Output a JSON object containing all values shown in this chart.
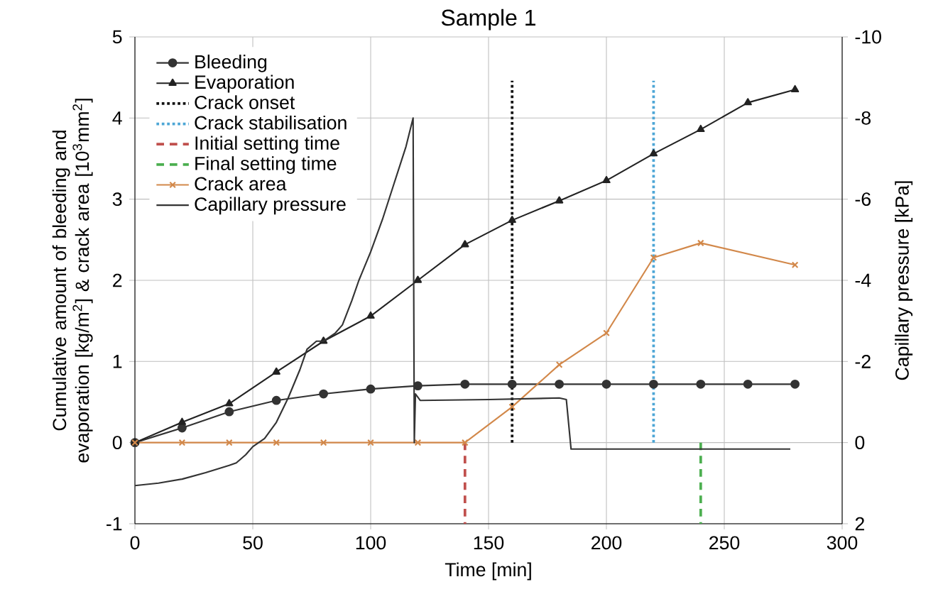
{
  "chart_data": {
    "type": "line",
    "title": "Sample 1",
    "xlabel": "Time [min]",
    "ylabel": "Cumulative amount of bleeding and evaporation [kg/m$^{2}$] & crack area [10$^{3}$mm$^{2}$]",
    "y2label": "Capillary pressure [kPa]",
    "xlim": [
      0,
      300
    ],
    "xticks": [
      0,
      50,
      100,
      150,
      200,
      250,
      300
    ],
    "ylim": [
      -1,
      5
    ],
    "yticks": [
      -1,
      0,
      1,
      2,
      3,
      4,
      5
    ],
    "y2lim": [
      2,
      -10
    ],
    "y2ticks": [
      2,
      0,
      -2,
      -4,
      -6,
      -8,
      -10
    ],
    "grid": true,
    "legend": "top left",
    "series": [
      {
        "name": "Bleeding",
        "color": "#333333",
        "marker": "circle",
        "x": [
          0,
          20,
          40,
          60,
          80,
          100,
          120,
          140,
          160,
          180,
          200,
          220,
          240,
          260,
          280
        ],
        "values": [
          0,
          0.18,
          0.38,
          0.52,
          0.6,
          0.66,
          0.7,
          0.72,
          0.72,
          0.72,
          0.72,
          0.72,
          0.72,
          0.72,
          0.72
        ]
      },
      {
        "name": "Evaporation",
        "color": "#222222",
        "marker": "triangle",
        "x": [
          0,
          20,
          40,
          60,
          80,
          100,
          120,
          140,
          160,
          180,
          200,
          220,
          240,
          260,
          280
        ],
        "values": [
          0,
          0.25,
          0.48,
          0.87,
          1.25,
          1.56,
          2.0,
          2.44,
          2.74,
          2.98,
          3.23,
          3.56,
          3.86,
          4.19,
          4.35
        ]
      },
      {
        "name": "Crack onset",
        "color": "#111111",
        "marker": "none",
        "line_style": "dotted",
        "x": [
          160,
          160
        ],
        "values": [
          0,
          4.46
        ]
      },
      {
        "name": "Crack stabilisation",
        "color": "#4da6d6",
        "marker": "none",
        "line_style": "dotted",
        "x": [
          220,
          220
        ],
        "values": [
          0,
          4.46
        ]
      },
      {
        "name": "Initial setting time",
        "color": "#c0504d",
        "marker": "none",
        "line_style": "dashed",
        "x": [
          140,
          140
        ],
        "values": [
          0,
          -1
        ]
      },
      {
        "name": "Final setting time",
        "color": "#4caf50",
        "marker": "none",
        "line_style": "dashed",
        "x": [
          240,
          240
        ],
        "values": [
          0,
          -1
        ]
      },
      {
        "name": "Crack area",
        "color": "#d2884a",
        "marker": "cross",
        "x": [
          0,
          20,
          40,
          60,
          80,
          100,
          120,
          140,
          160,
          180,
          200,
          220,
          240,
          280
        ],
        "values": [
          0,
          0,
          0,
          0,
          0,
          0,
          0,
          0,
          0.44,
          0.96,
          1.35,
          2.28,
          2.46,
          2.19
        ]
      },
      {
        "name": "Capillary pressure",
        "color": "#333333",
        "marker": "none",
        "axis": "y2",
        "x": [
          0,
          10,
          20,
          30,
          40,
          43,
          47,
          50,
          55,
          60,
          65,
          70,
          73,
          77,
          80,
          85,
          88,
          92,
          95,
          100,
          105,
          110,
          115,
          118,
          118.5,
          119,
          121,
          150,
          180,
          183,
          185,
          278
        ],
        "values": [
          1.06,
          1.0,
          0.9,
          0.74,
          0.56,
          0.5,
          0.3,
          0.1,
          -0.1,
          -0.5,
          -1.1,
          -1.8,
          -2.3,
          -2.5,
          -2.5,
          -2.7,
          -2.9,
          -3.5,
          -4.0,
          -4.7,
          -5.5,
          -6.4,
          -7.3,
          -8.0,
          0,
          -1.2,
          -1.04,
          -1.06,
          -1.1,
          -1.06,
          0.16,
          0.16
        ]
      }
    ]
  }
}
